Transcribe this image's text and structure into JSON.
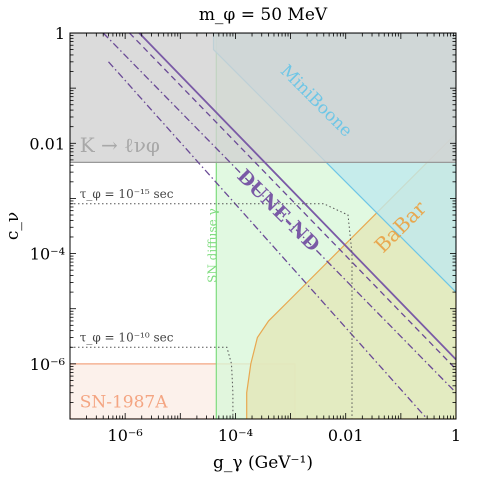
{
  "chart_data": {
    "type": "line",
    "title": "m_φ = 50 MeV",
    "xlabel": "g_γ (GeV⁻¹)",
    "ylabel": "c_ν",
    "xscale": "log",
    "yscale": "log",
    "xlim": [
      1e-07,
      1
    ],
    "ylim": [
      1e-07,
      1
    ],
    "x_ticks": [
      {
        "value": 1e-06,
        "label": "10⁻⁶"
      },
      {
        "value": 0.0001,
        "label": "10⁻⁴"
      },
      {
        "value": 0.01,
        "label": "0.01"
      },
      {
        "value": 1,
        "label": "1"
      }
    ],
    "y_ticks": [
      {
        "value": 1e-06,
        "label": "10⁻⁶"
      },
      {
        "value": 0.0001,
        "label": "10⁻⁴"
      },
      {
        "value": 0.01,
        "label": "0.01"
      },
      {
        "value": 1,
        "label": "1"
      }
    ],
    "regions": [
      {
        "name": "SN-1987A",
        "label": "SN-1987A",
        "color": "#f4a582",
        "fill": "#fbeee6",
        "x": [
          1e-07,
          0.0012,
          0.0012,
          1e-07
        ],
        "y": [
          1e-07,
          1e-07,
          1e-06,
          1e-06
        ]
      },
      {
        "name": "SN diffuse γ",
        "label": "SN diffuse γ",
        "color": "#7fdc7f",
        "fill": "#d9f7d9",
        "x": [
          4.5e-05,
          1,
          1,
          4.5e-05
        ],
        "y": [
          1e-07,
          1e-07,
          1,
          1
        ]
      },
      {
        "name": "BaBar",
        "label": "BaBar",
        "color": "#e8a850",
        "fill": "#e3e7b9",
        "x": [
          0.00016,
          0.00016,
          0.00019,
          0.00025,
          0.0004,
          0.001,
          0.1,
          1,
          1
        ],
        "y": [
          1e-07,
          3e-07,
          1e-06,
          3e-06,
          6e-06,
          1.5e-05,
          0.0015,
          0.015,
          1e-07
        ]
      },
      {
        "name": "MiniBoone",
        "label": "MiniBoone",
        "color": "#6ec6e6",
        "fill": "#bfe9ee",
        "x": [
          4e-05,
          1,
          1,
          4e-05
        ],
        "y": [
          1,
          1,
          2e-05,
          0.5
        ]
      },
      {
        "name": "K → ℓνφ",
        "label": "K → ℓνφ",
        "color": "#999999",
        "fill": "#d2d2d2",
        "x": [
          1e-07,
          1,
          1,
          1e-07
        ],
        "y": [
          0.0045,
          0.0045,
          1,
          1
        ]
      }
    ],
    "lines": [
      {
        "name": "DUNE-ND",
        "label": "DUNE-ND",
        "color": "#7a5aa6",
        "style": "solid",
        "x": [
          1.8e-06,
          1
        ],
        "y": [
          1,
          1.2e-06
        ]
      },
      {
        "name": "DUNE-ND dashed",
        "color": "#6a4a96",
        "style": "dashed",
        "x": [
          1.2e-06,
          1
        ],
        "y": [
          1,
          8e-07
        ]
      },
      {
        "name": "DUNE-ND dash-dot",
        "color": "#6a4a96",
        "style": "dashdot",
        "x": [
          4e-07,
          1
        ],
        "y": [
          1,
          3e-07
        ]
      },
      {
        "name": "DUNE-ND dash-dot 2",
        "color": "#6a4a96",
        "style": "dashdot",
        "x": [
          5e-07,
          0.3
        ],
        "y": [
          0.3,
          1e-07
        ]
      }
    ],
    "contours": [
      {
        "label": "τ_φ = 10⁻¹⁵ sec",
        "color": "#555555",
        "x": [
          1e-07,
          0.004,
          0.011,
          0.013,
          0.013
        ],
        "y": [
          0.0008,
          0.0008,
          0.0005,
          0.0001,
          1e-07
        ]
      },
      {
        "label": "τ_φ = 10⁻¹⁰ sec",
        "color": "#555555",
        "x": [
          1e-07,
          7e-05,
          8.5e-05,
          9e-05,
          9e-05
        ],
        "y": [
          2e-06,
          2e-06,
          1e-06,
          3e-07,
          1e-07
        ]
      }
    ]
  }
}
